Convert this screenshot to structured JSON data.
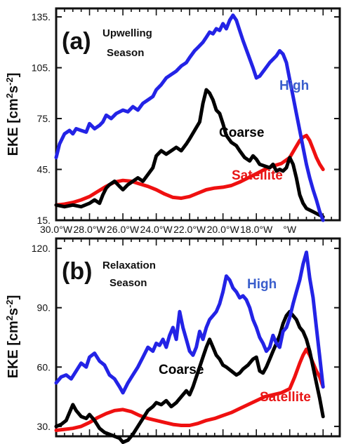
{
  "chart_data": [
    {
      "type": "line",
      "panel_label": "(a)",
      "season_label": [
        "Upwelling",
        "Season"
      ],
      "ylabel": [
        "EKE [cm",
        "2",
        "s",
        "-2",
        "]"
      ],
      "ylim": [
        15,
        140
      ],
      "yticks": [
        15,
        45,
        75,
        105,
        135
      ],
      "ytick_labels": [
        "15.",
        "45.",
        "75.",
        "105.",
        "135."
      ],
      "xlim": [
        -30,
        -13
      ],
      "xticks": [
        -30,
        -28,
        -26,
        -24,
        -22,
        -20,
        -18,
        -16
      ],
      "xtick_labels": [
        "30.0°W",
        "28.0°W",
        "26.0°W",
        "24.0°W",
        "22.0°W",
        "20.0°W",
        "18.0°W",
        "",
        "°W"
      ],
      "xtick_label_positions": [
        -30,
        -28,
        -26,
        -24,
        -22,
        -20,
        -18,
        -16.8,
        -16
      ],
      "series": [
        {
          "name": "High",
          "color": "#2323e6",
          "label_color": "#3a5ecc",
          "x": [
            -30,
            -29.8,
            -29.5,
            -29.2,
            -29,
            -28.8,
            -28.5,
            -28.2,
            -28,
            -27.7,
            -27.4,
            -27.2,
            -27,
            -26.7,
            -26.4,
            -26,
            -25.7,
            -25.4,
            -25.1,
            -24.8,
            -24.5,
            -24.2,
            -24,
            -23.7,
            -23.4,
            -23.1,
            -22.8,
            -22.5,
            -22.2,
            -22,
            -21.7,
            -21.5,
            -21.2,
            -21,
            -20.8,
            -20.6,
            -20.4,
            -20.2,
            -20,
            -19.8,
            -19.6,
            -19.4,
            -19.2,
            -19,
            -18.8,
            -18.5,
            -18.2,
            -18,
            -17.8,
            -17.5,
            -17.2,
            -17,
            -16.8,
            -16.6,
            -16.4,
            -16.2,
            -16,
            -15.8,
            -15.6,
            -15.4,
            -15.2,
            -15,
            -14.8,
            -14.6,
            -14.4,
            -14.2,
            -14
          ],
          "values": [
            52,
            60,
            66,
            68,
            66,
            69,
            68,
            67,
            72,
            69,
            71,
            73,
            77,
            75,
            78,
            80,
            79,
            82,
            80,
            84,
            86,
            88,
            92,
            95,
            99,
            101,
            103,
            106,
            108,
            111,
            115,
            117,
            120,
            123,
            126,
            125,
            128,
            127,
            131,
            128,
            133,
            136,
            133,
            127,
            121,
            113,
            105,
            99,
            100,
            104,
            108,
            110,
            112,
            115,
            113,
            108,
            98,
            88,
            78,
            68,
            58,
            48,
            40,
            33,
            27,
            20,
            15
          ]
        },
        {
          "name": "Coarse",
          "color": "#000000",
          "label_color": "#000000",
          "x": [
            -30,
            -29.5,
            -29,
            -28.5,
            -28,
            -27.7,
            -27.4,
            -27.2,
            -27,
            -26.8,
            -26.5,
            -26.2,
            -26,
            -25.7,
            -25.4,
            -25.1,
            -24.8,
            -24.5,
            -24.2,
            -24,
            -23.7,
            -23.4,
            -23.1,
            -22.8,
            -22.5,
            -22.2,
            -22,
            -21.7,
            -21.4,
            -21.2,
            -21,
            -20.8,
            -20.6,
            -20.4,
            -20.2,
            -20,
            -19.8,
            -19.5,
            -19.2,
            -19,
            -18.7,
            -18.4,
            -18.2,
            -18,
            -17.8,
            -17.5,
            -17.2,
            -17,
            -16.8,
            -16.6,
            -16.4,
            -16.2,
            -16,
            -15.8,
            -15.6,
            -15.4,
            -15.2,
            -15,
            -14.8,
            -14.6,
            -14.4,
            -14.2,
            -14
          ],
          "values": [
            24,
            23,
            24,
            23,
            25,
            27,
            25,
            30,
            34,
            36,
            38,
            35,
            33,
            36,
            38,
            40,
            38,
            42,
            46,
            53,
            56,
            54,
            56,
            58,
            56,
            60,
            63,
            68,
            73,
            84,
            92,
            90,
            86,
            80,
            78,
            72,
            65,
            61,
            59,
            56,
            52,
            50,
            53,
            51,
            48,
            47,
            46,
            48,
            44,
            45,
            44,
            46,
            52,
            48,
            40,
            30,
            25,
            22,
            21,
            20,
            19,
            18,
            17
          ]
        },
        {
          "name": "Satellite",
          "color": "#ef1010",
          "label_color": "#e81515",
          "x": [
            -30,
            -29.5,
            -29,
            -28.5,
            -28,
            -27.5,
            -27,
            -26.5,
            -26,
            -25.5,
            -25,
            -24.5,
            -24,
            -23.5,
            -23,
            -22.5,
            -22,
            -21.5,
            -21,
            -20.5,
            -20,
            -19.5,
            -19,
            -18.5,
            -18,
            -17.5,
            -17,
            -16.5,
            -16,
            -15.7,
            -15.4,
            -15.2,
            -15,
            -14.8,
            -14.6,
            -14.4,
            -14.2,
            -14
          ],
          "values": [
            24,
            24.5,
            25.5,
            27,
            29,
            32,
            35,
            37.5,
            38.5,
            38,
            36.5,
            35,
            33,
            30.5,
            28.5,
            28,
            29,
            31,
            33,
            34,
            34.5,
            35.5,
            37.5,
            40,
            42.5,
            45,
            47,
            48.5,
            52,
            57,
            62,
            64,
            65,
            62,
            57,
            52,
            48,
            45
          ]
        }
      ],
      "labels": {
        "high": "High",
        "coarse": "Coarse",
        "satellite": "Satellite"
      }
    },
    {
      "type": "line",
      "panel_label": "(b)",
      "season_label": [
        "Relaxation",
        "Season"
      ],
      "ylabel": [
        "EKE [cm",
        "2",
        "s",
        "-2",
        "]"
      ],
      "ylim": [
        25,
        125
      ],
      "yticks": [
        30,
        60,
        90,
        120
      ],
      "ytick_labels": [
        "30.",
        "60.",
        "90.",
        "120."
      ],
      "xlim": [
        -30,
        -13
      ],
      "series": [
        {
          "name": "High",
          "color": "#2323e6",
          "label_color": "#3a5ecc",
          "x": [
            -30,
            -29.7,
            -29.4,
            -29.1,
            -28.8,
            -28.5,
            -28.2,
            -28,
            -27.7,
            -27.4,
            -27.1,
            -26.8,
            -26.5,
            -26.2,
            -26,
            -25.7,
            -25.4,
            -25.1,
            -24.8,
            -24.5,
            -24.2,
            -24,
            -23.8,
            -23.6,
            -23.4,
            -23.2,
            -23,
            -22.8,
            -22.6,
            -22.4,
            -22.2,
            -22,
            -21.8,
            -21.6,
            -21.4,
            -21.2,
            -21,
            -20.8,
            -20.6,
            -20.4,
            -20.2,
            -20,
            -19.8,
            -19.6,
            -19.4,
            -19.2,
            -19,
            -18.8,
            -18.6,
            -18.4,
            -18.2,
            -18,
            -17.8,
            -17.6,
            -17.4,
            -17.2,
            -17,
            -16.8,
            -16.6,
            -16.4,
            -16.2,
            -16,
            -15.8,
            -15.6,
            -15.4,
            -15.2,
            -15,
            -14.8,
            -14.6,
            -14.4,
            -14.2,
            -14
          ],
          "values": [
            52,
            55,
            56,
            54,
            58,
            62,
            60,
            65,
            67,
            63,
            61,
            56,
            54,
            50,
            47,
            52,
            56,
            60,
            65,
            70,
            68,
            72,
            71,
            74,
            70,
            76,
            80,
            74,
            88,
            80,
            74,
            68,
            66,
            70,
            78,
            74,
            80,
            84,
            86,
            88,
            92,
            98,
            106,
            104,
            100,
            98,
            95,
            96,
            94,
            90,
            84,
            80,
            75,
            72,
            68,
            70,
            76,
            72,
            70,
            78,
            80,
            85,
            92,
            98,
            104,
            112,
            118,
            105,
            95,
            80,
            65,
            50
          ]
        },
        {
          "name": "Coarse",
          "color": "#000000",
          "label_color": "#000000",
          "x": [
            -30,
            -29.7,
            -29.4,
            -29.2,
            -29,
            -28.8,
            -28.5,
            -28.2,
            -28,
            -27.7,
            -27.4,
            -27.1,
            -26.8,
            -26.5,
            -26.2,
            -26,
            -25.7,
            -25.4,
            -25.1,
            -24.8,
            -24.5,
            -24.2,
            -24,
            -23.7,
            -23.4,
            -23.1,
            -22.8,
            -22.5,
            -22.2,
            -22,
            -21.8,
            -21.6,
            -21.4,
            -21.2,
            -21,
            -20.8,
            -20.6,
            -20.4,
            -20.2,
            -20,
            -19.8,
            -19.5,
            -19.2,
            -19,
            -18.8,
            -18.5,
            -18.2,
            -18,
            -17.8,
            -17.6,
            -17.4,
            -17.2,
            -17,
            -16.8,
            -16.6,
            -16.4,
            -16.2,
            -16,
            -15.8,
            -15.6,
            -15.4,
            -15.2,
            -15,
            -14.8,
            -14.6,
            -14.4,
            -14.2,
            -14
          ],
          "values": [
            30,
            31,
            33,
            37,
            41,
            38,
            35,
            34,
            36,
            33,
            29,
            27,
            26,
            25,
            24,
            22,
            23,
            26,
            30,
            34,
            38,
            40,
            42,
            41,
            43,
            40,
            42,
            45,
            48,
            46,
            50,
            55,
            60,
            65,
            70,
            74,
            70,
            66,
            64,
            61,
            60,
            58,
            56,
            57,
            59,
            61,
            64,
            65,
            58,
            57,
            60,
            64,
            68,
            72,
            76,
            82,
            86,
            88,
            86,
            84,
            80,
            78,
            74,
            68,
            60,
            52,
            44,
            35
          ]
        },
        {
          "name": "Satellite",
          "color": "#ef1010",
          "label_color": "#e81515",
          "x": [
            -30,
            -29.5,
            -29,
            -28.5,
            -28,
            -27.5,
            -27,
            -26.5,
            -26,
            -25.5,
            -25,
            -24.5,
            -24,
            -23.5,
            -23,
            -22.5,
            -22,
            -21.5,
            -21,
            -20.5,
            -20,
            -19.5,
            -19,
            -18.5,
            -18,
            -17.5,
            -17,
            -16.5,
            -16,
            -15.7,
            -15.4,
            -15.2,
            -15,
            -14.8,
            -14.6,
            -14.4,
            -14.2,
            -14
          ],
          "values": [
            28,
            28.5,
            29,
            30,
            32,
            34.5,
            36.5,
            38,
            38.5,
            37.5,
            35.5,
            34,
            33,
            32,
            31,
            30.5,
            30.5,
            31.5,
            33,
            34,
            35.5,
            37,
            39,
            41,
            43,
            45,
            46,
            47,
            49,
            55,
            62,
            66,
            69,
            66,
            62,
            58,
            55,
            50
          ]
        }
      ],
      "labels": {
        "high": "High",
        "coarse": "Coarse",
        "satellite": "Satellite"
      }
    }
  ]
}
